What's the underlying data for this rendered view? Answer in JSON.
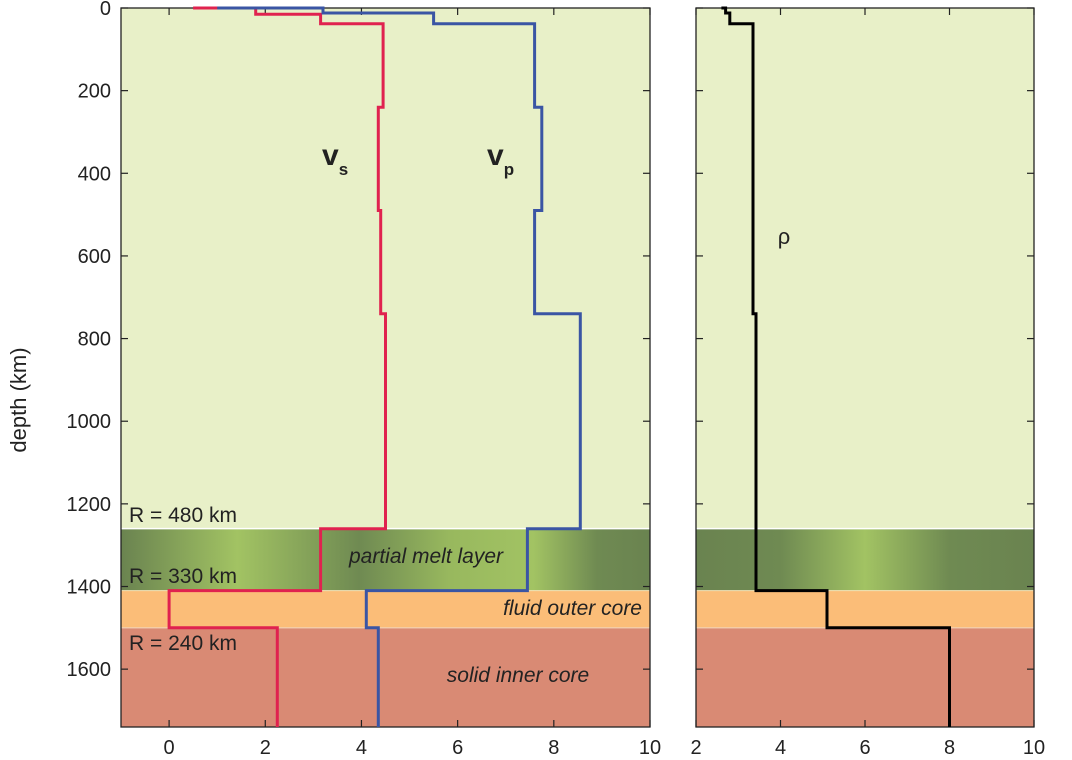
{
  "colors": {
    "mantle": "#e8f0c8",
    "melt_dark": "#6a8350",
    "melt_light": "#a2c363",
    "outer_core": "#fbbd78",
    "inner_core": "#d98a74",
    "vs": "#e0224f",
    "vp": "#3a55a4",
    "rho": "#000000"
  },
  "chart_data": [
    {
      "type": "line",
      "ylabel": "depth (km)",
      "ylim": [
        0,
        1740
      ],
      "y_inverted": true,
      "xlim": [
        -1,
        10
      ],
      "xticks": [
        0,
        2,
        4,
        6,
        8,
        10
      ],
      "yticks": [
        0,
        200,
        400,
        600,
        800,
        1000,
        1200,
        1400,
        1600
      ],
      "layers": [
        {
          "name": "mantle",
          "top": 0,
          "bottom": 1260
        },
        {
          "name": "partial melt layer",
          "top": 1260,
          "bottom": 1410
        },
        {
          "name": "fluid outer core",
          "top": 1410,
          "bottom": 1500
        },
        {
          "name": "solid inner core",
          "top": 1500,
          "bottom": 1740
        }
      ],
      "layer_labels": {
        "melt": "partial melt layer",
        "outer": "fluid outer core",
        "inner": "solid inner core"
      },
      "radius_labels": [
        "R = 480 km",
        "R = 330 km",
        "R = 240 km"
      ],
      "series": [
        {
          "name": "v",
          "subscript": "s",
          "color": "#e0224f",
          "points": [
            [
              0.5,
              0
            ],
            [
              1.8,
              0
            ],
            [
              1.8,
              15
            ],
            [
              3.15,
              15
            ],
            [
              3.15,
              38
            ],
            [
              4.45,
              38
            ],
            [
              4.45,
              240
            ],
            [
              4.35,
              240
            ],
            [
              4.35,
              490
            ],
            [
              4.4,
              490
            ],
            [
              4.4,
              740
            ],
            [
              4.5,
              740
            ],
            [
              4.5,
              1260
            ],
            [
              3.15,
              1260
            ],
            [
              3.15,
              1410
            ],
            [
              0,
              1410
            ],
            [
              0,
              1500
            ],
            [
              2.25,
              1500
            ],
            [
              2.25,
              1740
            ]
          ]
        },
        {
          "name": "v",
          "subscript": "p",
          "color": "#3a55a4",
          "points": [
            [
              1,
              0
            ],
            [
              3.2,
              0
            ],
            [
              3.2,
              12
            ],
            [
              5.5,
              12
            ],
            [
              5.5,
              38
            ],
            [
              7.6,
              38
            ],
            [
              7.6,
              240
            ],
            [
              7.75,
              240
            ],
            [
              7.75,
              490
            ],
            [
              7.6,
              490
            ],
            [
              7.6,
              740
            ],
            [
              8.55,
              740
            ],
            [
              8.55,
              1260
            ],
            [
              7.45,
              1260
            ],
            [
              7.45,
              1410
            ],
            [
              4.1,
              1410
            ],
            [
              4.1,
              1500
            ],
            [
              4.35,
              1500
            ],
            [
              4.35,
              1740
            ]
          ]
        }
      ]
    },
    {
      "type": "line",
      "ylim": [
        0,
        1740
      ],
      "y_inverted": true,
      "xlim": [
        2,
        10
      ],
      "xticks": [
        2,
        4,
        6,
        8,
        10
      ],
      "series": [
        {
          "name": "ρ",
          "color": "#000000",
          "points": [
            [
              2.6,
              0
            ],
            [
              2.7,
              0
            ],
            [
              2.7,
              12
            ],
            [
              2.8,
              12
            ],
            [
              2.8,
              38
            ],
            [
              3.35,
              38
            ],
            [
              3.35,
              740
            ],
            [
              3.42,
              740
            ],
            [
              3.42,
              1410
            ],
            [
              5.1,
              1410
            ],
            [
              5.1,
              1500
            ],
            [
              8,
              1500
            ],
            [
              8,
              1740
            ]
          ]
        }
      ]
    }
  ]
}
